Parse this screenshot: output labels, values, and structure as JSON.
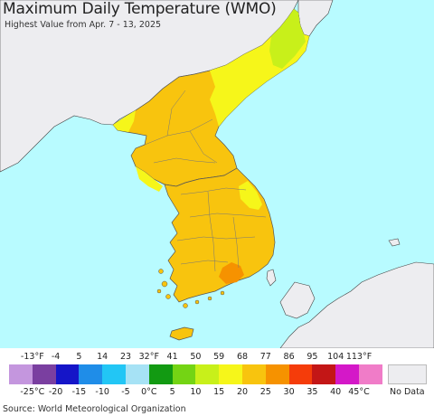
{
  "title": "Maximum Daily Temperature (WMO)",
  "subtitle": "Highest Value from Apr. 7 - 13, 2025",
  "legend": {
    "f_ticks": [
      "-13°F",
      "-4",
      "5",
      "14",
      "23",
      "32°F",
      "41",
      "50",
      "59",
      "68",
      "77",
      "86",
      "95",
      "104",
      "113°F"
    ],
    "c_ticks": [
      "-25°C",
      "-20",
      "-15",
      "-10",
      "-5",
      "0°C",
      "5",
      "10",
      "15",
      "20",
      "25",
      "30",
      "35",
      "40",
      "45°C"
    ],
    "colors": [
      "#c496de",
      "#7a3fa0",
      "#1515c8",
      "#1f8de8",
      "#22c6f5",
      "#a6e2f5",
      "#129a12",
      "#74d414",
      "#c8f01a",
      "#f6f61a",
      "#f8c40e",
      "#f69200",
      "#f53c0a",
      "#c31616",
      "#d418c8",
      "#f07cc8"
    ],
    "no_data_label": "No Data",
    "no_data_color": "#ededf0"
  },
  "source": "Source: World Meteorological Organization",
  "map": {
    "sea_color": "#b8fbff",
    "outside_land_color": "#ededf0",
    "region_colors": {
      "dominant": "#f8c40e",
      "warm_spot": "#f69200",
      "cooler": "#f6f61a",
      "coolest": "#c8f01a"
    }
  }
}
